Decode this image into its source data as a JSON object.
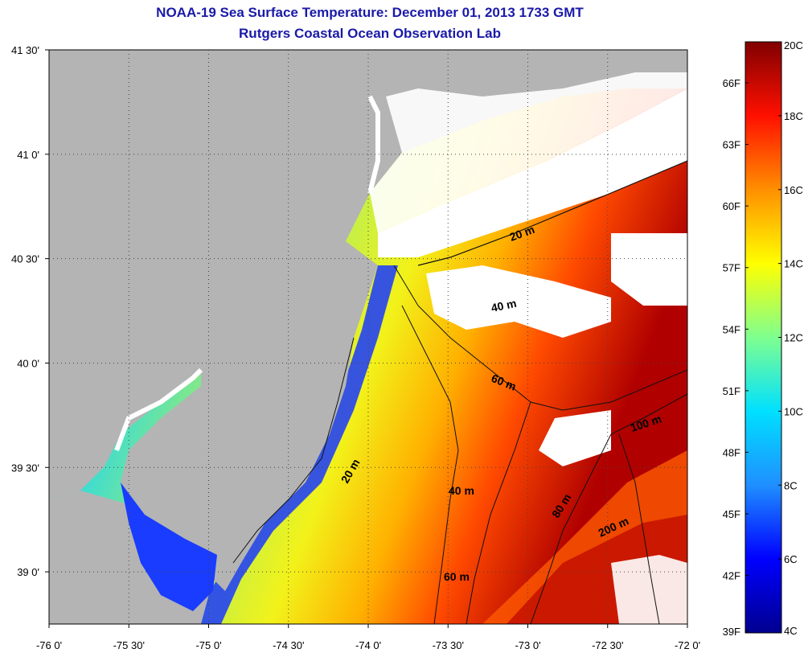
{
  "header": {
    "title": "NOAA-19 Sea Surface Temperature:  December 01, 2013 1733 GMT",
    "subtitle": "Rutgers Coastal Ocean Observation Lab"
  },
  "map": {
    "x_ticks": [
      "-76 0'",
      "-75 30'",
      "-75 0'",
      "-74 30'",
      "-74 0'",
      "-73 30'",
      "-73 0'",
      "-72 30'",
      "-72 0'"
    ],
    "y_ticks": [
      "41 30'",
      "41 0'",
      "40 30'",
      "40 0'",
      "39 30'",
      "39 0'"
    ],
    "contour_labels": [
      "20 m",
      "40 m",
      "60 m",
      "100 m",
      "20 m",
      "40 m",
      "80 m",
      "200 m",
      "60 m"
    ],
    "land_color": "#b4b4b4",
    "cloud_color": "#ffffff"
  },
  "colorbar": {
    "celsius_labels": [
      "20C",
      "18C",
      "16C",
      "14C",
      "12C",
      "10C",
      "8C",
      "6C",
      "4C"
    ],
    "fahrenheit_labels": [
      "66F",
      "63F",
      "60F",
      "57F",
      "54F",
      "51F",
      "48F",
      "45F",
      "42F",
      "39F"
    ],
    "celsius_range": [
      4,
      20
    ],
    "fahrenheit_range": [
      39,
      68
    ]
  }
}
